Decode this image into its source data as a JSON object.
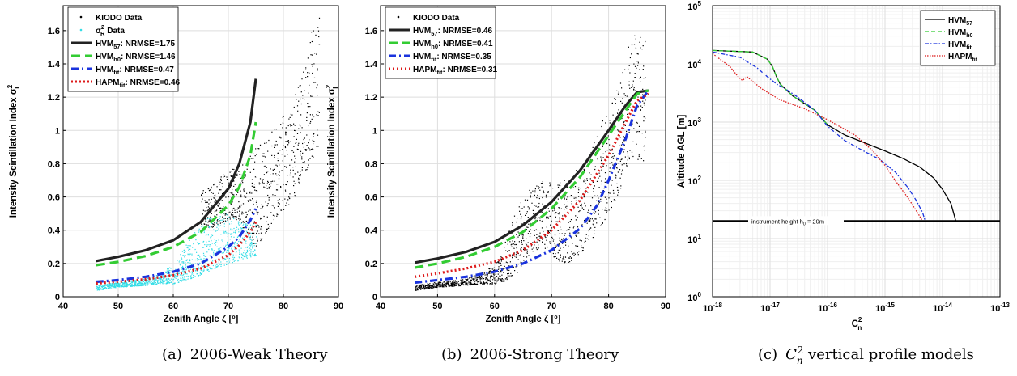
{
  "chart_data": [
    {
      "type": "scatter",
      "caption": {
        "tag": "(a)",
        "text": "2006-Weak Theory"
      },
      "xlabel": "Zenith Angle ζ [º]",
      "ylabel": "Intensity Scintillation Index σ_I^2",
      "xlim": [
        40,
        90
      ],
      "ylim": [
        0,
        1.75
      ],
      "xticks": [
        "40",
        "50",
        "60",
        "70",
        "80",
        "90"
      ],
      "yticks": [
        "0",
        "0.2",
        "0.4",
        "0.6",
        "0.8",
        "1",
        "1.2",
        "1.4",
        "1.6"
      ],
      "grid": true,
      "legend_position": "top-left",
      "legend": [
        {
          "base": "KIODO Data",
          "sub": "",
          "suffix": "",
          "style": "dots",
          "color": "#000000"
        },
        {
          "base": "σ",
          "sub": "R",
          "sup": "2",
          "suffix": " Data",
          "style": "dots",
          "color": "#33dde6"
        },
        {
          "base": "HVM",
          "sub": "57",
          "suffix": ": NRMSE=1.75",
          "style": "solid",
          "color": "#222222"
        },
        {
          "base": "HVM",
          "sub": "h0",
          "suffix": ": NRMSE=1.46",
          "style": "dashed",
          "color": "#33cc33"
        },
        {
          "base": "HVM",
          "sub": "fit",
          "suffix": ": NRMSE=0.47",
          "style": "dashdot",
          "color": "#1a33dd"
        },
        {
          "base": "HAPM",
          "sub": "fit",
          "suffix": ": NRMSE=0.46",
          "style": "dotted",
          "color": "#dd1a1a"
        }
      ],
      "scatter_series": [
        {
          "name": "KIODO Data",
          "color": "#000000",
          "density": 34,
          "envelope": [
            [
              65,
              0.4,
              0.64
            ],
            [
              67,
              0.42,
              0.7
            ],
            [
              69,
              0.45,
              0.74
            ],
            [
              71,
              0.48,
              0.78
            ],
            [
              73,
              0.4,
              0.82
            ],
            [
              75,
              0.3,
              0.9
            ],
            [
              77,
              0.4,
              1.0
            ],
            [
              79,
              0.5,
              1.05
            ],
            [
              81,
              0.55,
              1.15
            ],
            [
              83,
              0.65,
              1.3
            ],
            [
              85,
              0.85,
              1.6
            ],
            [
              86.5,
              0.8,
              1.7
            ]
          ]
        },
        {
          "name": "σR² Data",
          "color": "#33dde6",
          "density": 40,
          "envelope": [
            [
              46,
              0.04,
              0.07
            ],
            [
              50,
              0.06,
              0.09
            ],
            [
              55,
              0.07,
              0.11
            ],
            [
              58,
              0.08,
              0.15
            ],
            [
              60,
              0.08,
              0.2
            ],
            [
              62,
              0.1,
              0.3
            ],
            [
              64,
              0.12,
              0.4
            ],
            [
              66,
              0.15,
              0.48
            ],
            [
              68,
              0.18,
              0.52
            ],
            [
              70,
              0.2,
              0.5
            ],
            [
              72,
              0.22,
              0.45
            ],
            [
              75,
              0.25,
              0.45
            ]
          ]
        }
      ],
      "series": [
        {
          "name": "HVM57",
          "style": "solid",
          "color": "#222222",
          "x": [
            46,
            50,
            55,
            60,
            65,
            70,
            72,
            74,
            75
          ],
          "y": [
            0.215,
            0.24,
            0.28,
            0.34,
            0.45,
            0.65,
            0.8,
            1.05,
            1.31
          ]
        },
        {
          "name": "HVMh0",
          "style": "dashed",
          "color": "#33cc33",
          "x": [
            46,
            50,
            55,
            60,
            65,
            70,
            72,
            74,
            75
          ],
          "y": [
            0.19,
            0.21,
            0.245,
            0.3,
            0.39,
            0.55,
            0.66,
            0.85,
            1.05
          ]
        },
        {
          "name": "HVMfit",
          "style": "dashdot",
          "color": "#1a33dd",
          "x": [
            46,
            50,
            55,
            60,
            65,
            70,
            72,
            74,
            75
          ],
          "y": [
            0.09,
            0.1,
            0.12,
            0.15,
            0.2,
            0.3,
            0.36,
            0.46,
            0.53
          ]
        },
        {
          "name": "HAPMfit",
          "style": "dotted",
          "color": "#dd1a1a",
          "x": [
            46,
            50,
            55,
            60,
            65,
            70,
            72,
            74,
            75
          ],
          "y": [
            0.08,
            0.09,
            0.105,
            0.13,
            0.17,
            0.25,
            0.31,
            0.39,
            0.45
          ]
        }
      ]
    },
    {
      "type": "scatter",
      "caption": {
        "tag": "(b)",
        "text": "2006-Strong Theory"
      },
      "xlabel": "Zenith Angle ζ [º]",
      "ylabel": "Intensity Scintillation Index σ_I^2",
      "xlim": [
        40,
        90
      ],
      "ylim": [
        0,
        1.75
      ],
      "xticks": [
        "40",
        "50",
        "60",
        "70",
        "80",
        "90"
      ],
      "yticks": [
        "0",
        "0.2",
        "0.4",
        "0.6",
        "0.8",
        "1",
        "1.2",
        "1.4",
        "1.6"
      ],
      "grid": true,
      "legend_position": "top-left",
      "legend": [
        {
          "base": "KIODO Data",
          "sub": "",
          "suffix": "",
          "style": "dots",
          "color": "#000000"
        },
        {
          "base": "HVM",
          "sub": "57",
          "suffix": ": NRMSE=0.46",
          "style": "solid",
          "color": "#222222"
        },
        {
          "base": "HVM",
          "sub": "h0",
          "suffix": ": NRMSE=0.41",
          "style": "dashed",
          "color": "#33cc33"
        },
        {
          "base": "HVM",
          "sub": "fit",
          "suffix": ": NRMSE=0.35",
          "style": "dashdot",
          "color": "#1a33dd"
        },
        {
          "base": "HAPM",
          "sub": "fit",
          "suffix": ": NRMSE=0.31",
          "style": "dotted",
          "color": "#dd1a1a"
        }
      ],
      "scatter_series": [
        {
          "name": "KIODO Data",
          "color": "#000000",
          "density": 34,
          "envelope": [
            [
              46,
              0.04,
              0.07
            ],
            [
              50,
              0.06,
              0.09
            ],
            [
              55,
              0.07,
              0.11
            ],
            [
              58,
              0.08,
              0.15
            ],
            [
              60,
              0.08,
              0.2
            ],
            [
              62,
              0.1,
              0.35
            ],
            [
              64,
              0.15,
              0.55
            ],
            [
              66,
              0.25,
              0.65
            ],
            [
              68,
              0.3,
              0.7
            ],
            [
              70,
              0.25,
              0.7
            ],
            [
              72,
              0.2,
              0.7
            ],
            [
              74,
              0.22,
              0.75
            ],
            [
              76,
              0.3,
              0.85
            ],
            [
              78,
              0.4,
              1.0
            ],
            [
              80,
              0.5,
              1.15
            ],
            [
              82,
              0.65,
              1.3
            ],
            [
              84,
              0.85,
              1.6
            ],
            [
              86.5,
              0.8,
              1.7
            ]
          ]
        }
      ],
      "series": [
        {
          "name": "HVM57",
          "style": "solid",
          "color": "#222222",
          "x": [
            46,
            50,
            55,
            60,
            65,
            70,
            75,
            80,
            83,
            85,
            87
          ],
          "y": [
            0.205,
            0.23,
            0.27,
            0.33,
            0.43,
            0.57,
            0.76,
            1.0,
            1.15,
            1.23,
            1.24
          ]
        },
        {
          "name": "HVMh0",
          "style": "dashed",
          "color": "#33cc33",
          "x": [
            46,
            50,
            55,
            60,
            65,
            70,
            75,
            80,
            83,
            85,
            87
          ],
          "y": [
            0.175,
            0.2,
            0.24,
            0.3,
            0.39,
            0.53,
            0.72,
            0.97,
            1.12,
            1.22,
            1.24
          ]
        },
        {
          "name": "HVMfit",
          "style": "dashdot",
          "color": "#1a33dd",
          "x": [
            46,
            50,
            55,
            60,
            65,
            70,
            75,
            78,
            80,
            83,
            85,
            87
          ],
          "y": [
            0.085,
            0.1,
            0.12,
            0.15,
            0.2,
            0.28,
            0.41,
            0.55,
            0.7,
            0.95,
            1.15,
            1.24
          ]
        },
        {
          "name": "HAPMfit",
          "style": "dotted",
          "color": "#dd1a1a",
          "x": [
            46,
            50,
            55,
            60,
            65,
            70,
            75,
            80,
            83,
            85,
            87
          ],
          "y": [
            0.12,
            0.14,
            0.17,
            0.21,
            0.28,
            0.4,
            0.58,
            0.85,
            1.05,
            1.18,
            1.22
          ]
        }
      ]
    },
    {
      "type": "line",
      "caption": {
        "tag": "(c)",
        "text_math": "C",
        "text_sub": "n",
        "text_sup": "2",
        "text_rest": " vertical profile models"
      },
      "xlabel": "C_n^2",
      "ylabel": "Altitude AGL [m]",
      "xscale": "log",
      "yscale": "log",
      "xlim": [
        1e-18,
        1e-13
      ],
      "ylim": [
        1,
        100000
      ],
      "xticks": [
        {
          "b": "10",
          "e": "-18"
        },
        {
          "b": "10",
          "e": "-17"
        },
        {
          "b": "10",
          "e": "-16"
        },
        {
          "b": "10",
          "e": "-15"
        },
        {
          "b": "10",
          "e": "-14"
        },
        {
          "b": "10",
          "e": "-13"
        }
      ],
      "yticks": [
        {
          "b": "10",
          "e": "0"
        },
        {
          "b": "10",
          "e": "1"
        },
        {
          "b": "10",
          "e": "2"
        },
        {
          "b": "10",
          "e": "3"
        },
        {
          "b": "10",
          "e": "4"
        },
        {
          "b": "10",
          "e": "5"
        }
      ],
      "grid": true,
      "legend_position": "top-right",
      "legend": [
        {
          "base": "HVM",
          "sub": "57",
          "style": "solid",
          "color": "#000000"
        },
        {
          "base": "HVM",
          "sub": "h0",
          "style": "dashed",
          "color": "#33cc33"
        },
        {
          "base": "HVM",
          "sub": "fit",
          "style": "dashdot",
          "color": "#1a33dd"
        },
        {
          "base": "HAPM",
          "sub": "fit",
          "style": "dotted",
          "color": "#dd1a1a"
        }
      ],
      "annotation": {
        "text": "instrument height h",
        "sub": "0",
        "rest": " = 20m",
        "height": 20
      },
      "series": [
        {
          "name": "HVM57",
          "style": "solid",
          "color": "#000000",
          "x": [
            1e-18,
            5e-18,
            9e-18,
            1.1e-17,
            1.3e-17,
            1.5e-17,
            2.5e-17,
            6e-17,
            1e-16,
            2e-16,
            5e-16,
            1e-15,
            2e-15,
            4e-15,
            7e-15,
            1e-14,
            1.4e-14,
            1.6e-14,
            1.7e-14
          ],
          "y": [
            17000,
            16000,
            12000,
            9000,
            6000,
            4500,
            2800,
            1600,
            900,
            600,
            420,
            320,
            240,
            170,
            110,
            70,
            40,
            25,
            20
          ]
        },
        {
          "name": "HVMh0",
          "style": "dashed",
          "color": "#33cc33",
          "x": [
            1e-18,
            5e-18,
            9e-18,
            1.1e-17,
            1.3e-17,
            1.5e-17,
            2.5e-17,
            6e-17,
            1e-16
          ],
          "y": [
            17000,
            16000,
            12000,
            9000,
            6000,
            4500,
            2800,
            1600,
            900
          ]
        },
        {
          "name": "HVMfit",
          "style": "dashdot",
          "color": "#1a33dd",
          "x": [
            1e-18,
            3e-18,
            6e-18,
            9e-18,
            1.3e-17,
            1.8e-17,
            3e-17,
            6e-17,
            1e-16,
            2e-16,
            4e-16,
            8e-16,
            1.5e-15,
            2.5e-15,
            3.5e-15,
            4.5e-15,
            5e-15
          ],
          "y": [
            16000,
            13000,
            8500,
            6000,
            4500,
            3800,
            2700,
            1600,
            850,
            480,
            330,
            230,
            140,
            75,
            45,
            28,
            20
          ]
        },
        {
          "name": "HAPMfit",
          "style": "dotted",
          "color": "#dd1a1a",
          "x": [
            1e-18,
            2e-18,
            2.8e-18,
            3.3e-18,
            4e-18,
            5e-18,
            7e-18,
            1.5e-17,
            4e-17,
            1e-16,
            3e-16,
            6e-16,
            1e-15,
            1.5e-15,
            2.5e-15,
            3.5e-15,
            4.5e-15
          ],
          "y": [
            15000,
            9000,
            6000,
            5200,
            6000,
            5000,
            3800,
            2400,
            1700,
            1100,
            600,
            330,
            180,
            100,
            50,
            30,
            20
          ]
        }
      ]
    }
  ]
}
